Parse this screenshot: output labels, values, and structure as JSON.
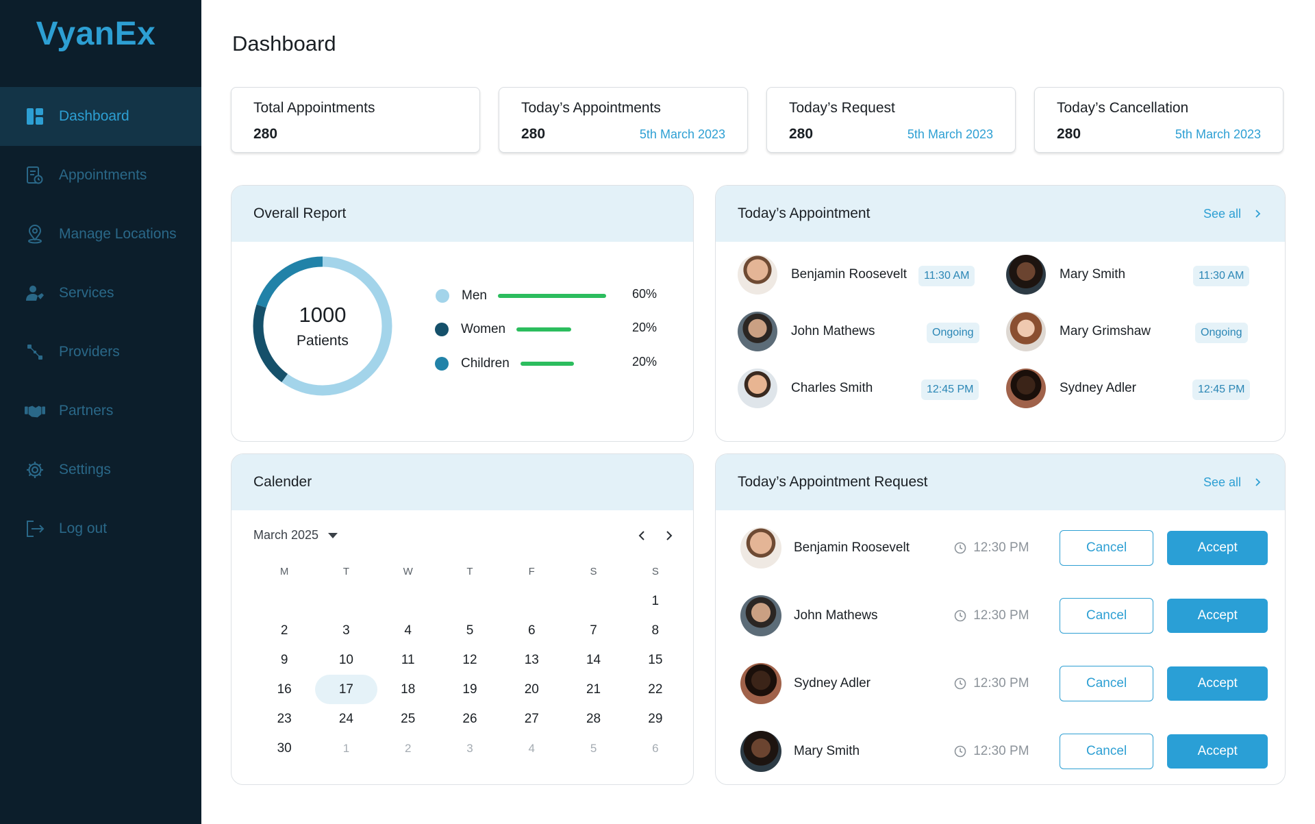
{
  "brand": {
    "name": "VyanEx",
    "color": "#2d9fd3"
  },
  "sidebar": {
    "items": [
      {
        "label": "Dashboard",
        "icon": "dashboard-icon",
        "active": true
      },
      {
        "label": "Appointments",
        "icon": "appointments-icon"
      },
      {
        "label": "Manage Locations",
        "icon": "location-icon"
      },
      {
        "label": "Services",
        "icon": "services-icon"
      },
      {
        "label": "Providers",
        "icon": "providers-icon"
      },
      {
        "label": "Partners",
        "icon": "handshake-icon"
      },
      {
        "label": "Settings",
        "icon": "gear-icon"
      },
      {
        "label": "Log out",
        "icon": "logout-icon"
      }
    ]
  },
  "header": {
    "title": "Dashboard"
  },
  "stats": [
    {
      "title": "Total Appointments",
      "value": "280",
      "date": ""
    },
    {
      "title": "Today’s Appointments",
      "value": "280",
      "date": "5th March 2023"
    },
    {
      "title": "Today’s Request",
      "value": "280",
      "date": "5th March 2023"
    },
    {
      "title": "Today’s Cancellation",
      "value": "280",
      "date": "5th March 2023"
    }
  ],
  "overall_report": {
    "title": "Overall Report",
    "total": "1000",
    "total_label": "Patients",
    "legend": [
      {
        "name": "Men",
        "pct": "60%",
        "value": 60,
        "color": "#a3d4ea"
      },
      {
        "name": "Women",
        "pct": "20%",
        "value": 20,
        "color": "#15506a"
      },
      {
        "name": "Children",
        "pct": "20%",
        "value": 20,
        "color": "#2182a8"
      }
    ]
  },
  "todays_appointment": {
    "title": "Today’s Appointment",
    "see_all": "See all",
    "items": [
      {
        "name": "Benjamin Roosevelt",
        "status": "11:30 AM"
      },
      {
        "name": "Mary Smith",
        "status": "11:30 AM"
      },
      {
        "name": "John Mathews",
        "status": "Ongoing"
      },
      {
        "name": "Mary Grimshaw",
        "status": "Ongoing"
      },
      {
        "name": "Charles Smith",
        "status": "12:45 PM"
      },
      {
        "name": "Sydney Adler",
        "status": "12:45 PM"
      }
    ]
  },
  "calendar": {
    "title": "Calender",
    "month": "March 2025",
    "weekdays": [
      "M",
      "T",
      "W",
      "T",
      "F",
      "S",
      "S"
    ],
    "weeks": [
      [
        "",
        "",
        "",
        "",
        "",
        "",
        "1"
      ],
      [
        "2",
        "3",
        "4",
        "5",
        "6",
        "7",
        "8"
      ],
      [
        "9",
        "10",
        "11",
        "12",
        "13",
        "14",
        "15"
      ],
      [
        "16",
        "17",
        "18",
        "19",
        "20",
        "21",
        "22"
      ],
      [
        "23",
        "24",
        "25",
        "26",
        "27",
        "28",
        "29"
      ],
      [
        "30",
        "1",
        "2",
        "3",
        "4",
        "5",
        "6"
      ]
    ],
    "selected": "17"
  },
  "requests": {
    "title": "Today’s Appointment Request",
    "see_all": "See all",
    "cancel_label": "Cancel",
    "accept_label": "Accept",
    "items": [
      {
        "name": "Benjamin Roosevelt",
        "time": "12:30 PM"
      },
      {
        "name": "John Mathews",
        "time": "12:30 PM"
      },
      {
        "name": "Sydney Adler",
        "time": "12:30 PM"
      },
      {
        "name": "Mary Smith",
        "time": "12:30 PM"
      }
    ]
  }
}
